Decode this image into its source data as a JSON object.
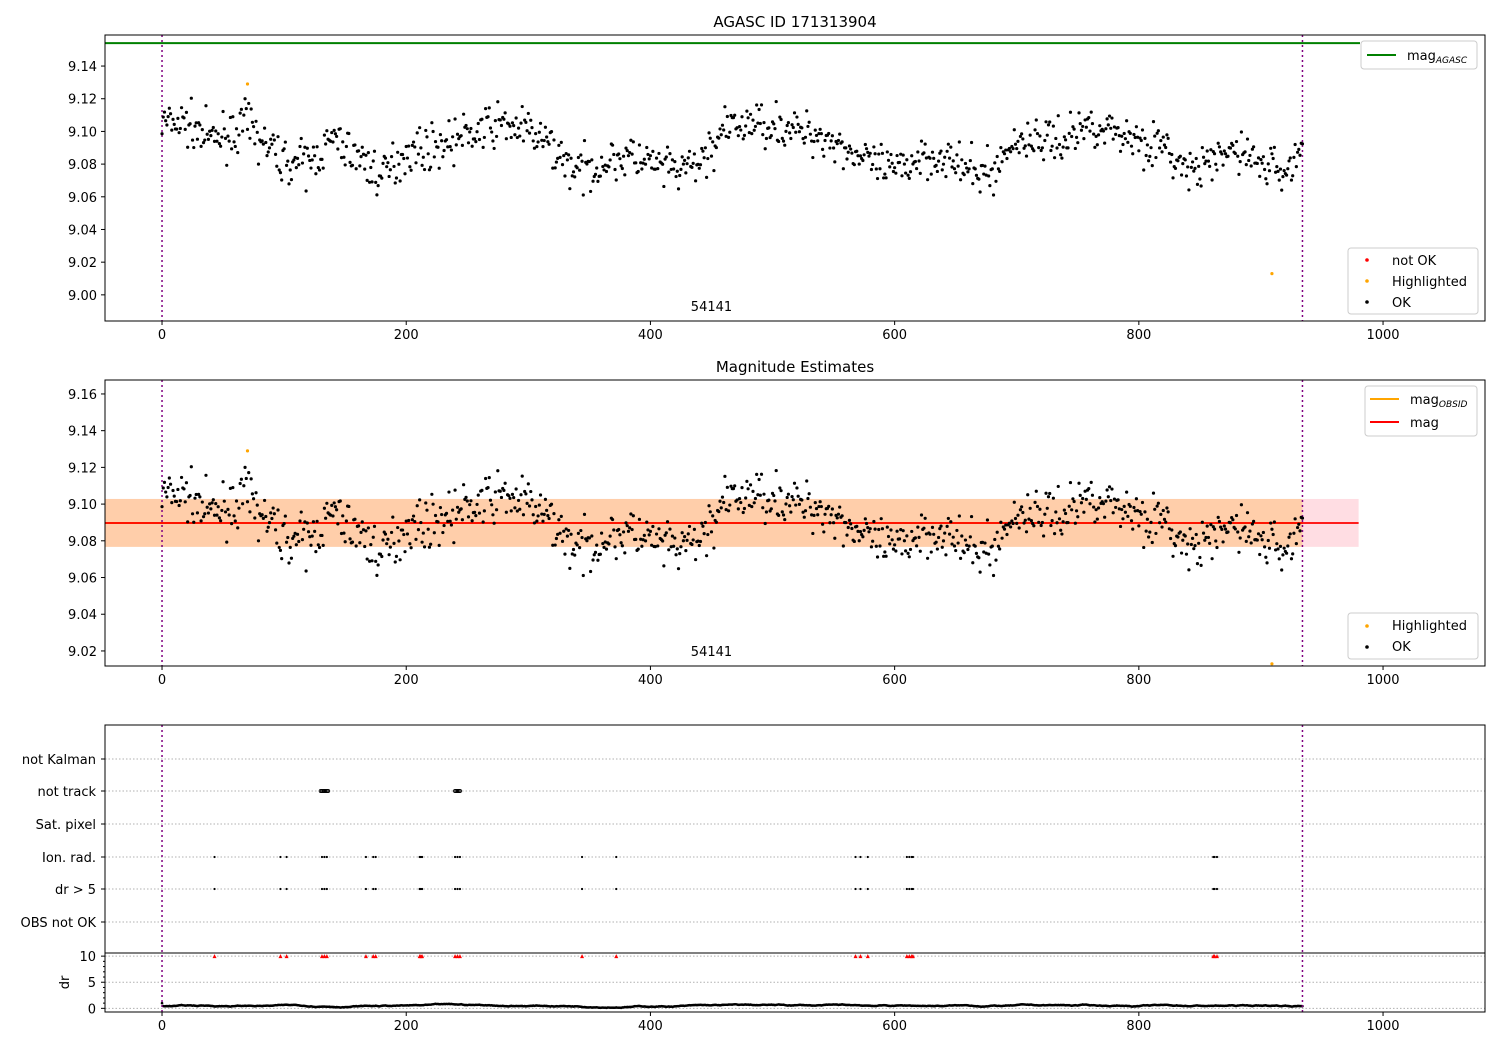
{
  "chart_data": [
    {
      "type": "scatter",
      "title": "AGASC ID 171313904",
      "xlim": [
        -46.7,
        1083.5
      ],
      "ylim": [
        8.984,
        9.159
      ],
      "xticks": [
        0,
        200,
        400,
        600,
        800,
        1000
      ],
      "yticks": [
        9.0,
        9.02,
        9.04,
        9.06,
        9.08,
        9.1,
        9.12,
        9.14
      ],
      "mag_agasc": 9.154,
      "obsid_label": "54141",
      "obs_bounds": [
        0,
        934
      ],
      "legend_line": {
        "label": "mag",
        "sub": "AGASC"
      },
      "legend_points": [
        "not OK",
        "Highlighted",
        "OK"
      ],
      "trend_x": [
        0,
        20,
        40,
        60,
        70,
        80,
        100,
        120,
        140,
        160,
        180,
        200,
        220,
        240,
        260,
        280,
        300,
        320,
        340,
        360,
        380,
        400,
        420,
        440,
        460,
        480,
        500,
        520,
        540,
        560,
        580,
        600,
        620,
        640,
        660,
        680,
        700,
        720,
        740,
        760,
        780,
        800,
        820,
        840,
        860,
        880,
        900,
        920,
        934
      ],
      "trend_y": [
        9.105,
        9.105,
        9.095,
        9.1,
        9.105,
        9.095,
        9.082,
        9.08,
        9.095,
        9.085,
        9.072,
        9.088,
        9.09,
        9.095,
        9.1,
        9.105,
        9.1,
        9.09,
        9.075,
        9.08,
        9.085,
        9.08,
        9.075,
        9.08,
        9.1,
        9.105,
        9.105,
        9.1,
        9.098,
        9.09,
        9.08,
        9.075,
        9.085,
        9.085,
        9.075,
        9.075,
        9.095,
        9.095,
        9.095,
        9.105,
        9.1,
        9.095,
        9.09,
        9.075,
        9.08,
        9.09,
        9.08,
        9.075,
        9.09
      ],
      "highlighted": [
        [
          70,
          9.129
        ],
        [
          909,
          9.013
        ]
      ]
    },
    {
      "type": "scatter",
      "title": "Magnitude Estimates",
      "xlim": [
        -46.7,
        1083.5
      ],
      "ylim": [
        9.0118,
        9.1676
      ],
      "xticks": [
        0,
        200,
        400,
        600,
        800,
        1000
      ],
      "yticks": [
        9.02,
        9.04,
        9.06,
        9.08,
        9.1,
        9.12,
        9.14,
        9.16
      ],
      "mag": 9.0897,
      "band": [
        9.0767,
        9.1028
      ],
      "band_obsid_end": 934,
      "band_end": 980,
      "obsid_label": "54141",
      "legend_lines": [
        {
          "label": "mag",
          "sub": "OBSID",
          "color": "#ffa500"
        },
        {
          "label": "mag",
          "sub": "",
          "color": "#ff0000"
        }
      ],
      "legend_points": [
        "Highlighted",
        "OK"
      ]
    },
    {
      "type": "scatter",
      "flags": [
        "not Kalman",
        "not track",
        "Sat. pixel",
        "Ion. rad.",
        "dr > 5",
        "OBS not OK"
      ],
      "not_track_x": [
        130,
        131,
        132,
        133,
        134,
        135,
        136,
        240,
        241,
        242,
        243,
        244
      ],
      "dr_gt5_x": [
        43,
        97,
        102,
        131,
        133,
        135,
        167,
        173,
        175,
        211,
        212,
        213,
        240,
        242,
        244,
        344,
        372,
        568,
        572,
        578,
        610,
        612,
        614,
        615,
        861,
        862,
        864
      ],
      "ylabel": "dr",
      "dr_yticks": [
        0,
        5,
        10
      ],
      "dr_ylim": [
        -0.7,
        10.6
      ],
      "xticks": [
        0,
        200,
        400,
        600,
        800,
        1000
      ]
    }
  ],
  "colors": {
    "ok": "#000000",
    "highlight": "#ffa500",
    "notok": "#ff0000",
    "agasc": "#008000",
    "bounds": "#800080"
  }
}
